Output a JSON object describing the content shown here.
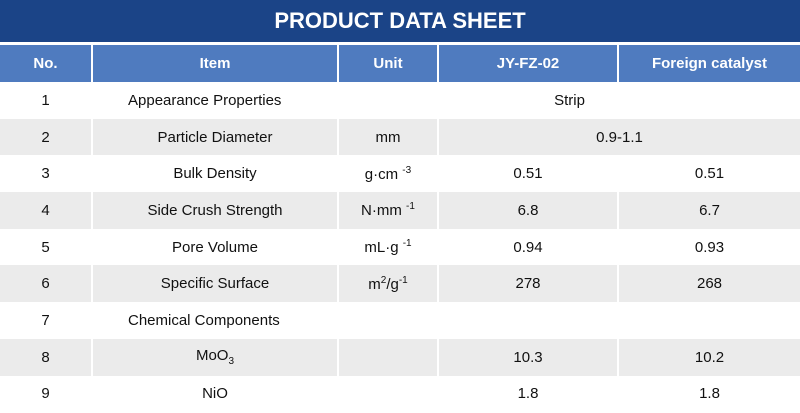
{
  "title": "PRODUCT DATA SHEET",
  "colors": {
    "title_bg": "#1b4487",
    "header_bg": "#4f7bbf",
    "alt_row": "#ebebeb"
  },
  "headers": [
    "No.",
    "Item",
    "Unit",
    "JY-FZ-02",
    "Foreign catalyst"
  ],
  "rows": [
    {
      "no": "1",
      "item": "Appearance Properties",
      "merged": "Strip"
    },
    {
      "no": "2",
      "item": "Particle Diameter",
      "unit": "mm",
      "merged": "0.9-1.1"
    },
    {
      "no": "3",
      "item": "Bulk Density",
      "unit": "g·cm",
      "unit_sup": "-3",
      "jy": "0.51",
      "foreign": "0.51"
    },
    {
      "no": "4",
      "item": "Side Crush Strength",
      "unit": "N·mm",
      "unit_sup": "-1",
      "jy": "6.8",
      "foreign": "6.7"
    },
    {
      "no": "5",
      "item": "Pore Volume",
      "unit": "mL·g",
      "unit_sup": "-1",
      "jy": "0.94",
      "foreign": "0.93"
    },
    {
      "no": "6",
      "item": "Specific Surface",
      "unit_a": "m",
      "unit_a_sup": "2",
      "unit_b": "/g",
      "unit_b_sup": "-1",
      "jy": "278",
      "foreign": "268"
    },
    {
      "no": "7",
      "item": "Chemical Components"
    },
    {
      "no": "8",
      "item": "MoO",
      "item_sub": "3",
      "jy": "10.3",
      "foreign": "10.2"
    },
    {
      "no": "9",
      "item": "NiO",
      "jy": "1.8",
      "foreign": "1.8"
    }
  ]
}
